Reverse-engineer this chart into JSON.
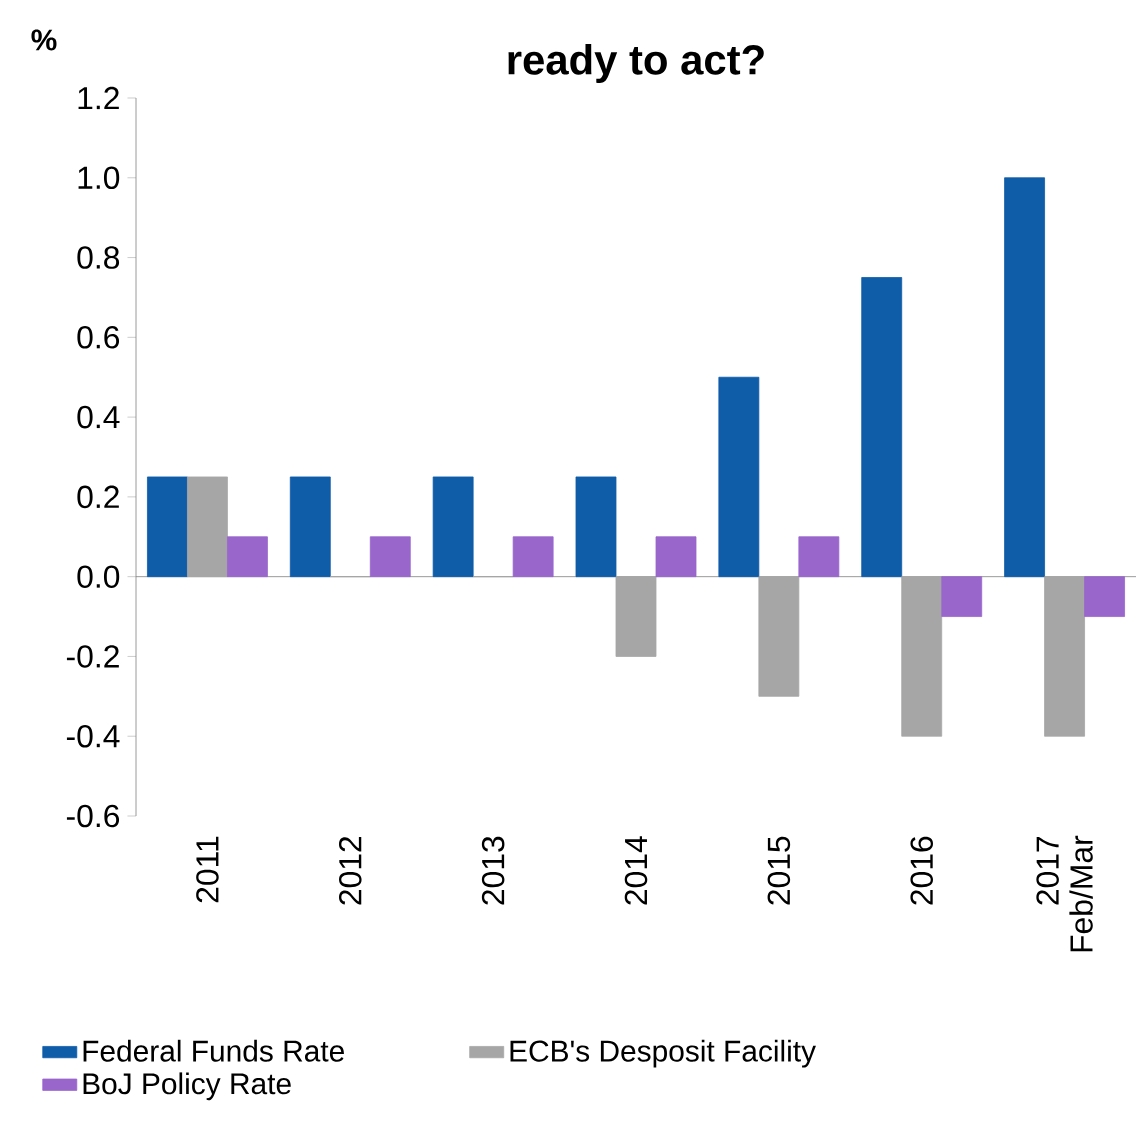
{
  "chart_data": {
    "type": "bar",
    "title": "ready to act?",
    "ylabel": "%",
    "categories": [
      "2011",
      "2012",
      "2013",
      "2014",
      "2015",
      "2016",
      "2017 Feb/Mar"
    ],
    "series": [
      {
        "name": "Federal Funds Rate",
        "color": "#0f5ca8",
        "values": [
          0.25,
          0.25,
          0.25,
          0.25,
          0.5,
          0.75,
          1.0
        ]
      },
      {
        "name": "ECB's Desposit Facility",
        "color": "#a6a6a6",
        "values": [
          0.25,
          0,
          0,
          -0.2,
          -0.3,
          -0.4,
          -0.4
        ]
      },
      {
        "name": "BoJ Policy Rate",
        "color": "#9966cc",
        "values": [
          0.1,
          0.1,
          0.1,
          0.1,
          0.1,
          -0.1,
          -0.1
        ]
      }
    ],
    "ylim": [
      -0.6,
      1.2
    ],
    "yticks": [
      -0.6,
      -0.4,
      -0.2,
      {
        "value": 0,
        "label": "0.0"
      },
      0.2,
      0.4,
      0.6,
      0.8,
      {
        "value": 1,
        "label": "1.0"
      },
      1.2
    ],
    "legend": "bottom"
  }
}
